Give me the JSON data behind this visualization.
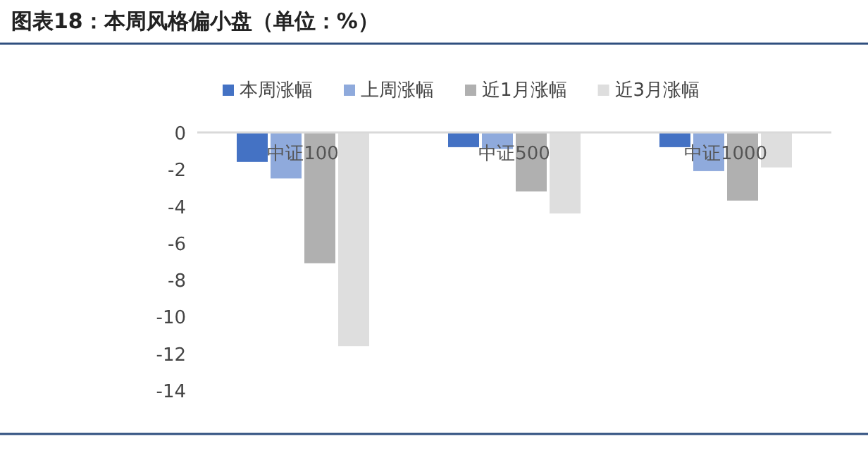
{
  "chart_data": {
    "type": "bar",
    "title": "图表18：本周风格偏小盘（单位：%）",
    "categories": [
      "中证100",
      "中证500",
      "中证1000"
    ],
    "series": [
      {
        "name": "本周涨幅",
        "color": "#4472c4",
        "values": [
          -1.6,
          -0.8,
          -0.8
        ]
      },
      {
        "name": "上周涨幅",
        "color": "#8faadc",
        "values": [
          -2.5,
          -0.9,
          -2.1
        ]
      },
      {
        "name": "近1月涨幅",
        "color": "#b0b0b0",
        "values": [
          -7.1,
          -3.2,
          -3.7
        ]
      },
      {
        "name": "近3月涨幅",
        "color": "#dedede",
        "values": [
          -11.6,
          -4.4,
          -1.9
        ]
      }
    ],
    "ylim": [
      -14,
      0
    ],
    "yticks": [
      {
        "value": -14,
        "label": "-14"
      },
      {
        "value": -12,
        "label": "-12"
      },
      {
        "value": -10,
        "label": "-10"
      },
      {
        "value": -8,
        "label": "-8"
      },
      {
        "value": -6,
        "label": "-6"
      },
      {
        "value": -4,
        "label": "-4"
      },
      {
        "value": -2,
        "label": "-2"
      },
      0
    ],
    "legend": "top",
    "grid": false
  }
}
